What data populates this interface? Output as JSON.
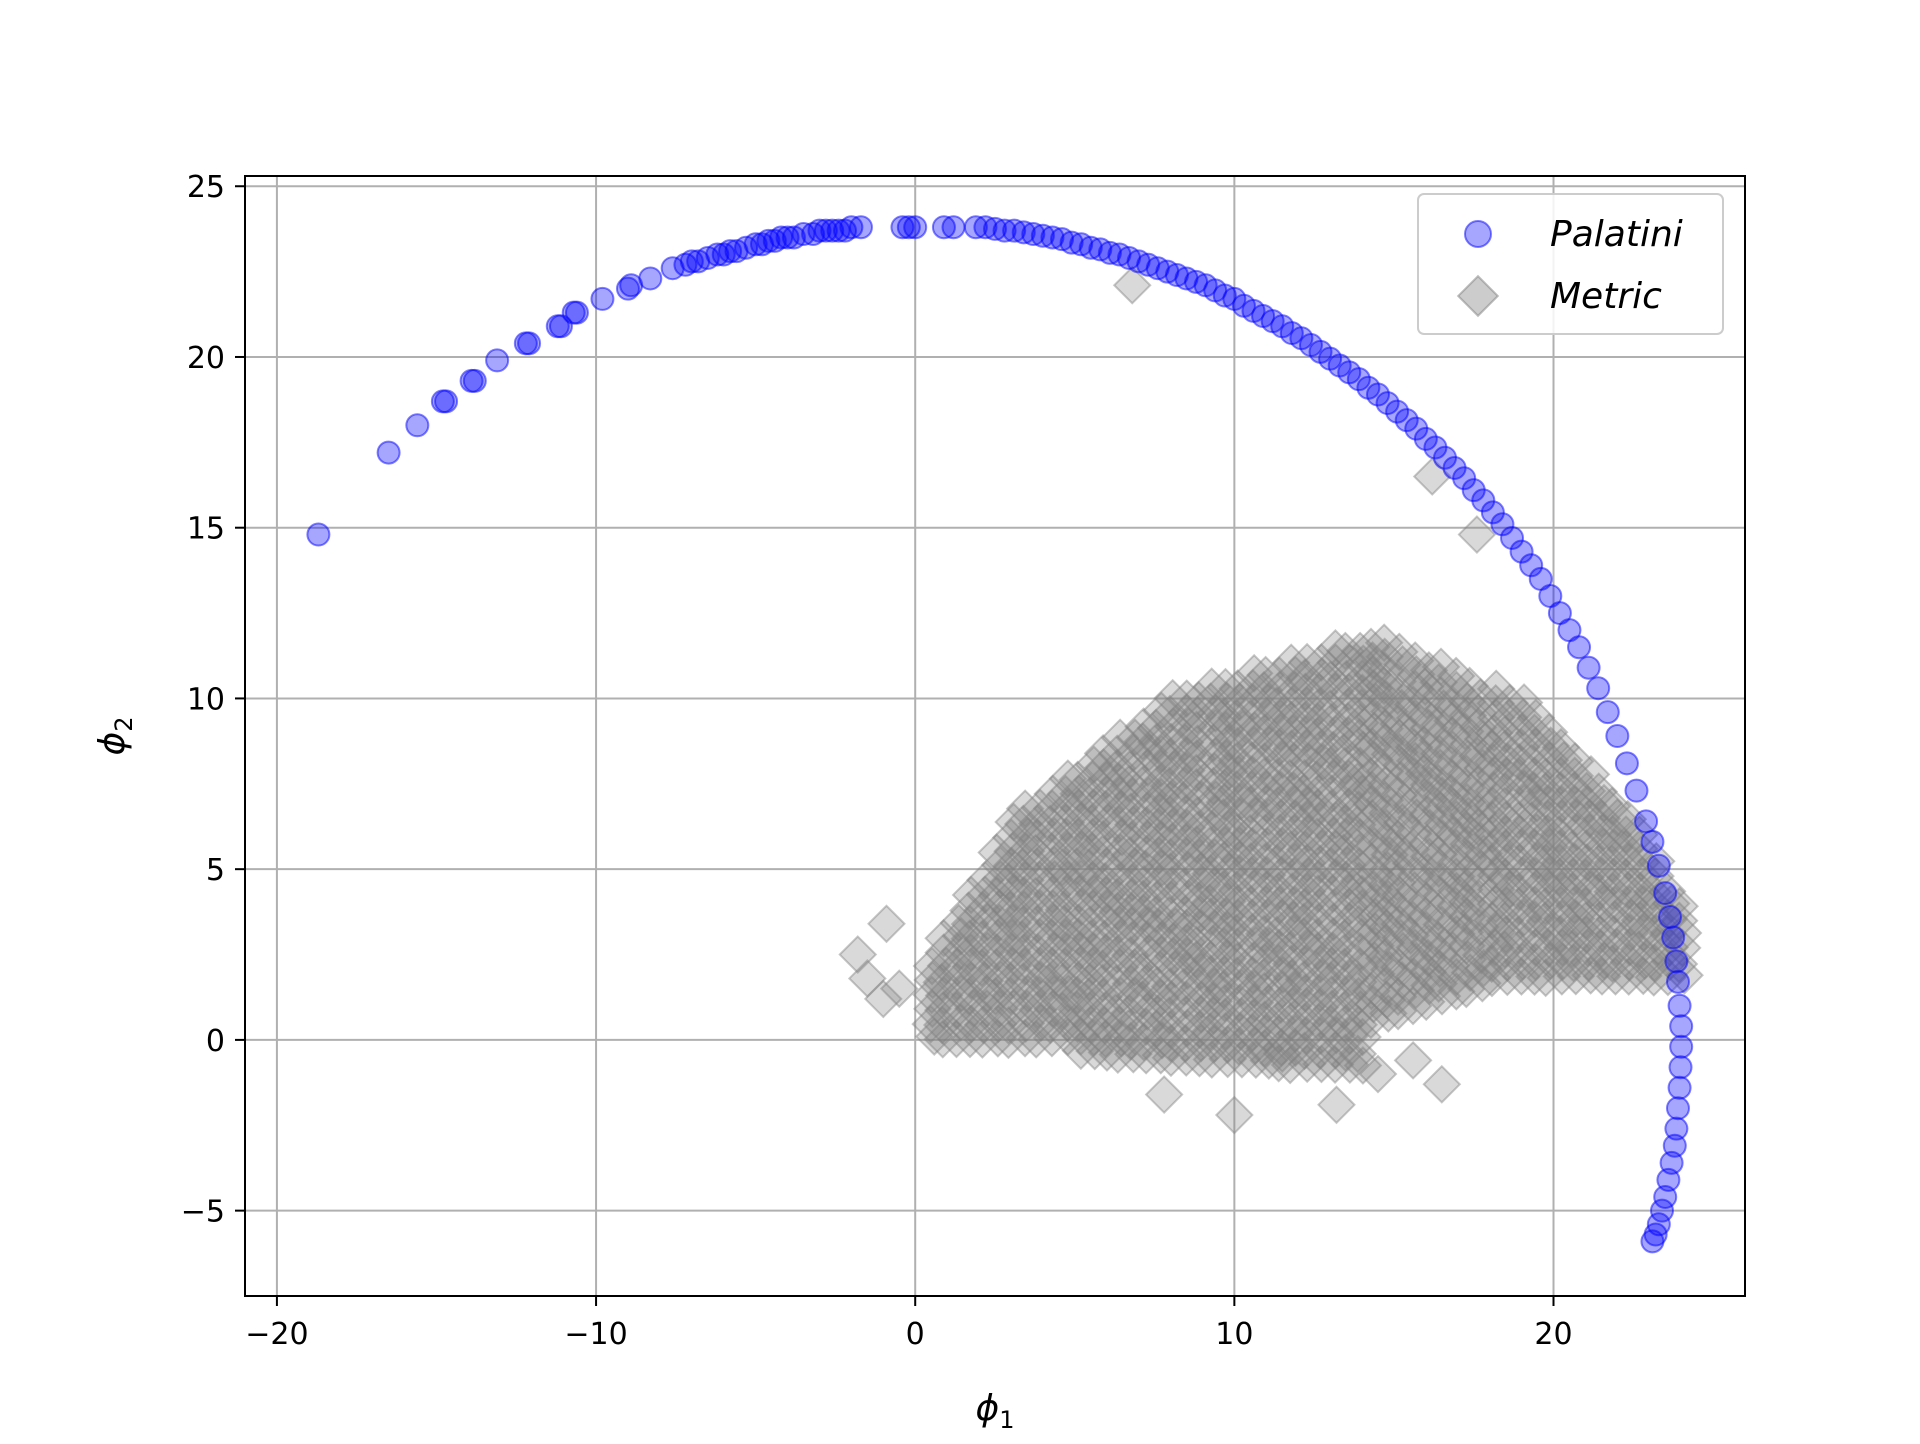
{
  "chart_data": {
    "type": "scatter",
    "title": "",
    "xlabel": "ϕ",
    "xlabel_subscript": "1",
    "ylabel": "ϕ",
    "ylabel_subscript": "2",
    "xlim": [
      -21,
      26
    ],
    "ylim": [
      -7.5,
      25.3
    ],
    "xticks": [
      -20,
      -10,
      0,
      10,
      20
    ],
    "xtick_labels": [
      "−20",
      "−10",
      "0",
      "10",
      "20"
    ],
    "yticks": [
      -5,
      0,
      5,
      10,
      15,
      20,
      25
    ],
    "ytick_labels": [
      "−5",
      "0",
      "5",
      "10",
      "15",
      "20",
      "25"
    ],
    "grid": true,
    "legend_position": "top-right",
    "series": [
      {
        "name": "Palatini",
        "marker": "circle",
        "color": "#0000ff",
        "alpha": 0.35,
        "points": [
          [
            -18.7,
            14.8
          ],
          [
            -16.5,
            17.2
          ],
          [
            -15.6,
            18.0
          ],
          [
            -14.8,
            18.7
          ],
          [
            -14.7,
            18.7
          ],
          [
            -13.9,
            19.3
          ],
          [
            -13.8,
            19.3
          ],
          [
            -13.1,
            19.9
          ],
          [
            -12.2,
            20.4
          ],
          [
            -12.1,
            20.4
          ],
          [
            -11.2,
            20.9
          ],
          [
            -11.1,
            20.9
          ],
          [
            -10.7,
            21.3
          ],
          [
            -10.6,
            21.3
          ],
          [
            -9.8,
            21.7
          ],
          [
            -9.0,
            22.0
          ],
          [
            -8.9,
            22.1
          ],
          [
            -8.3,
            22.3
          ],
          [
            -7.6,
            22.6
          ],
          [
            -7.2,
            22.7
          ],
          [
            -7.0,
            22.8
          ],
          [
            -6.8,
            22.8
          ],
          [
            -6.5,
            22.9
          ],
          [
            -6.2,
            23.0
          ],
          [
            -6.0,
            23.0
          ],
          [
            -5.8,
            23.1
          ],
          [
            -5.6,
            23.1
          ],
          [
            -5.3,
            23.2
          ],
          [
            -5.0,
            23.3
          ],
          [
            -4.8,
            23.3
          ],
          [
            -4.6,
            23.4
          ],
          [
            -4.4,
            23.4
          ],
          [
            -4.2,
            23.5
          ],
          [
            -4.0,
            23.5
          ],
          [
            -3.8,
            23.5
          ],
          [
            -3.5,
            23.6
          ],
          [
            -3.2,
            23.6
          ],
          [
            -3.0,
            23.7
          ],
          [
            -2.8,
            23.7
          ],
          [
            -2.6,
            23.7
          ],
          [
            -2.4,
            23.7
          ],
          [
            -2.2,
            23.7
          ],
          [
            -2.0,
            23.8
          ],
          [
            -1.7,
            23.8
          ],
          [
            -0.4,
            23.8
          ],
          [
            -0.2,
            23.8
          ],
          [
            0.0,
            23.8
          ],
          [
            0.9,
            23.8
          ],
          [
            1.2,
            23.8
          ],
          [
            1.9,
            23.8
          ],
          [
            2.2,
            23.8
          ],
          [
            2.5,
            23.75
          ],
          [
            2.8,
            23.7
          ],
          [
            3.1,
            23.7
          ],
          [
            3.4,
            23.65
          ],
          [
            3.7,
            23.6
          ],
          [
            4.0,
            23.55
          ],
          [
            4.3,
            23.5
          ],
          [
            4.6,
            23.45
          ],
          [
            4.9,
            23.35
          ],
          [
            5.2,
            23.3
          ],
          [
            5.5,
            23.2
          ],
          [
            5.8,
            23.15
          ],
          [
            6.1,
            23.05
          ],
          [
            6.4,
            23.0
          ],
          [
            6.7,
            22.9
          ],
          [
            7.0,
            22.8
          ],
          [
            7.3,
            22.7
          ],
          [
            7.6,
            22.6
          ],
          [
            7.9,
            22.5
          ],
          [
            8.2,
            22.4
          ],
          [
            8.5,
            22.3
          ],
          [
            8.8,
            22.2
          ],
          [
            9.1,
            22.1
          ],
          [
            9.4,
            21.95
          ],
          [
            9.7,
            21.8
          ],
          [
            10.0,
            21.7
          ],
          [
            10.3,
            21.5
          ],
          [
            10.6,
            21.35
          ],
          [
            10.9,
            21.2
          ],
          [
            11.2,
            21.05
          ],
          [
            11.5,
            20.9
          ],
          [
            11.8,
            20.7
          ],
          [
            12.1,
            20.55
          ],
          [
            12.4,
            20.35
          ],
          [
            12.7,
            20.15
          ],
          [
            13.0,
            19.95
          ],
          [
            13.3,
            19.75
          ],
          [
            13.6,
            19.55
          ],
          [
            13.9,
            19.35
          ],
          [
            14.2,
            19.1
          ],
          [
            14.5,
            18.9
          ],
          [
            14.8,
            18.65
          ],
          [
            15.1,
            18.4
          ],
          [
            15.4,
            18.15
          ],
          [
            15.7,
            17.9
          ],
          [
            16.0,
            17.6
          ],
          [
            16.3,
            17.35
          ],
          [
            16.6,
            17.05
          ],
          [
            16.9,
            16.75
          ],
          [
            17.2,
            16.45
          ],
          [
            17.5,
            16.1
          ],
          [
            17.8,
            15.8
          ],
          [
            18.1,
            15.45
          ],
          [
            18.4,
            15.1
          ],
          [
            18.7,
            14.7
          ],
          [
            19.0,
            14.3
          ],
          [
            19.3,
            13.9
          ],
          [
            19.6,
            13.5
          ],
          [
            19.9,
            13.0
          ],
          [
            20.2,
            12.5
          ],
          [
            20.5,
            12.0
          ],
          [
            20.8,
            11.5
          ],
          [
            21.1,
            10.9
          ],
          [
            21.4,
            10.3
          ],
          [
            21.7,
            9.6
          ],
          [
            22.0,
            8.9
          ],
          [
            22.3,
            8.1
          ],
          [
            22.6,
            7.3
          ],
          [
            22.9,
            6.4
          ],
          [
            23.1,
            5.8
          ],
          [
            23.3,
            5.1
          ],
          [
            23.5,
            4.3
          ],
          [
            23.65,
            3.6
          ],
          [
            23.75,
            3.0
          ],
          [
            23.85,
            2.3
          ],
          [
            23.9,
            1.7
          ],
          [
            23.95,
            1.0
          ],
          [
            24.0,
            0.4
          ],
          [
            24.0,
            -0.2
          ],
          [
            23.98,
            -0.8
          ],
          [
            23.95,
            -1.4
          ],
          [
            23.9,
            -2.0
          ],
          [
            23.85,
            -2.6
          ],
          [
            23.8,
            -3.1
          ],
          [
            23.7,
            -3.6
          ],
          [
            23.6,
            -4.1
          ],
          [
            23.5,
            -4.6
          ],
          [
            23.4,
            -5.0
          ],
          [
            23.3,
            -5.4
          ],
          [
            23.2,
            -5.7
          ],
          [
            23.1,
            -5.9
          ]
        ]
      },
      {
        "name": "Metric",
        "marker": "diamond",
        "color": "#808080",
        "alpha": 0.3,
        "region": {
          "x_min": 0.4,
          "x_max": 24.2,
          "y_min_approx": -2.3,
          "y_max_approx": 11.8,
          "left_tail": [
            [
              -1.8,
              2.5
            ],
            [
              -0.9,
              3.4
            ],
            [
              -1.5,
              1.8
            ],
            [
              -1.0,
              1.2
            ],
            [
              -0.5,
              1.5
            ]
          ],
          "outliers": [
            [
              6.8,
              22.1
            ],
            [
              16.2,
              16.5
            ],
            [
              17.6,
              14.8
            ],
            [
              10.0,
              -2.2
            ],
            [
              13.2,
              -1.9
            ],
            [
              15.6,
              -0.6
            ],
            [
              16.5,
              -1.3
            ],
            [
              7.8,
              -1.6
            ],
            [
              11.5,
              -0.4
            ],
            [
              14.5,
              -1.0
            ]
          ]
        }
      }
    ]
  }
}
